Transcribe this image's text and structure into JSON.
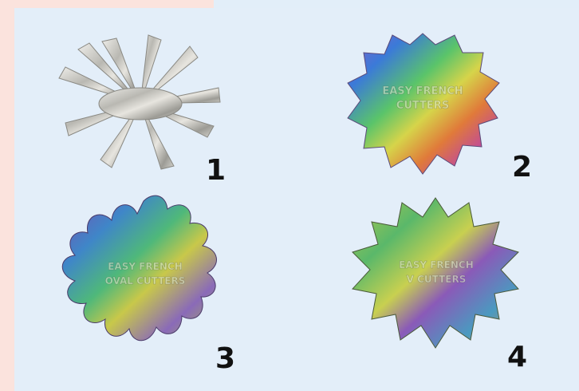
{
  "items": [
    {
      "number": "1",
      "type": "metal-cutter"
    },
    {
      "number": "2",
      "type": "holographic-cutter",
      "text_line1": "EASY FRENCH",
      "text_line2": "CUTTERS"
    },
    {
      "number": "3",
      "type": "holographic-cutter",
      "text_line1": "EASY FRENCH",
      "text_line2": "OVAL CUTTERS"
    },
    {
      "number": "4",
      "type": "holographic-cutter",
      "text_line1": "EASY FRENCH",
      "text_line2": "V CUTTERS"
    }
  ],
  "colors": {
    "background": "#e3eef9",
    "edge_tint": "#fbe3dd",
    "label": "#111111"
  }
}
